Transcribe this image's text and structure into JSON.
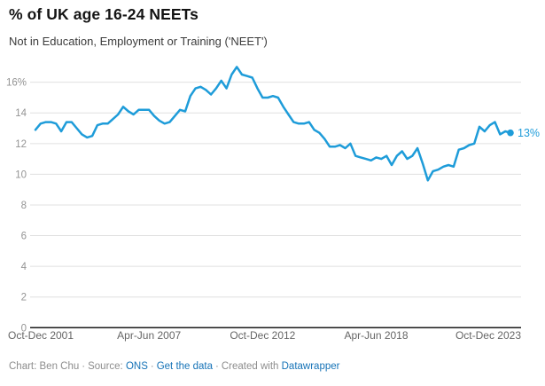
{
  "chart_data": {
    "type": "line",
    "title": "% of UK age 16-24 NEETs",
    "subtitle": "Not in Education, Employment or Training ('NEET')",
    "x_axis": {
      "tick_labels": [
        "Oct-Dec 2001",
        "Apr-Jun 2007",
        "Oct-Dec 2012",
        "Apr-Jun 2018",
        "Oct-Dec 2023"
      ],
      "tick_point_indices": [
        0,
        22,
        44,
        66,
        88
      ],
      "frequency": "quarterly"
    },
    "y_axis": {
      "tick_values": [
        0,
        2,
        4,
        6,
        8,
        10,
        12,
        14,
        16
      ],
      "tick_labels": [
        "0",
        "2",
        "4",
        "6",
        "8",
        "10",
        "12",
        "14",
        "16%"
      ],
      "range": [
        0,
        17.3
      ],
      "grid": true,
      "unit": "%"
    },
    "series": [
      {
        "name": "% of UK age 16-24 NEETs",
        "color": "#1e9cd9",
        "values": [
          12.9,
          13.3,
          13.4,
          13.4,
          13.3,
          12.8,
          13.4,
          13.4,
          13.0,
          12.6,
          12.4,
          12.5,
          13.2,
          13.3,
          13.3,
          13.6,
          13.9,
          14.4,
          14.1,
          13.9,
          14.2,
          14.2,
          14.2,
          13.8,
          13.5,
          13.3,
          13.4,
          13.8,
          14.2,
          14.1,
          15.1,
          15.6,
          15.7,
          15.5,
          15.2,
          15.6,
          16.1,
          15.6,
          16.5,
          17.0,
          16.5,
          16.4,
          16.3,
          15.6,
          15.0,
          15.0,
          15.1,
          15.0,
          14.4,
          13.9,
          13.4,
          13.3,
          13.3,
          13.4,
          12.9,
          12.7,
          12.3,
          11.8,
          11.8,
          11.9,
          11.7,
          12.0,
          11.2,
          11.1,
          11.0,
          10.9,
          11.1,
          11.0,
          11.2,
          10.6,
          11.2,
          11.5,
          11.0,
          11.2,
          11.7,
          10.7,
          9.6,
          10.2,
          10.3,
          10.5,
          10.6,
          10.5,
          11.6,
          11.7,
          11.9,
          12.0,
          13.1,
          12.8,
          13.2,
          13.4,
          12.6,
          12.8,
          12.7
        ]
      }
    ],
    "end_point_label": "13%",
    "legend": "none"
  },
  "footer": {
    "credit_text": "Chart: Ben Chu",
    "separator": "·",
    "source_label": "Source:",
    "source_link_text": "ONS",
    "get_data_link_text": "Get the data",
    "created_with_text": "Created with",
    "created_with_link_text": "Datawrapper"
  },
  "colors": {
    "line": "#1e9cd9",
    "end_label": "#1e9cd9",
    "grid": "#e0e0e0",
    "baseline": "#1a1a1a",
    "y_tick_text": "#949494",
    "x_tick_text": "#666666",
    "title_text": "#141414",
    "subtitle_text": "#3c3c3c",
    "footer_text": "#8d8d8d",
    "footer_link": "#1673b7",
    "background": "#ffffff"
  }
}
